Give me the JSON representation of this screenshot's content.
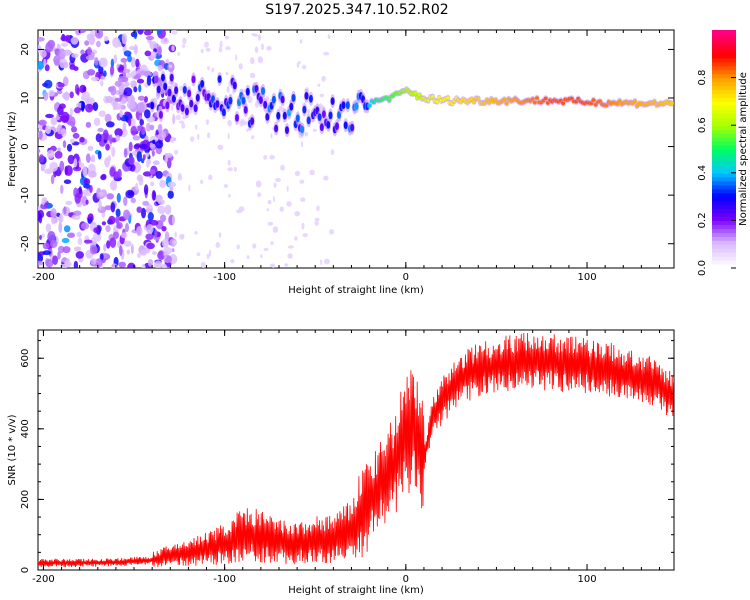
{
  "title": "S197.2025.347.10.52.R02",
  "chart_data": [
    {
      "type": "heatmap",
      "xlabel": "Height of straight line (km)",
      "ylabel": "Frequency (Hz)",
      "xlim": [
        -203,
        148
      ],
      "ylim": [
        -25,
        24
      ],
      "xticks": [
        -200,
        -100,
        0,
        100
      ],
      "yticks": [
        -20,
        -10,
        0,
        10,
        20
      ],
      "colorbar": {
        "label": "Normalized spectral amplitude",
        "range": [
          0,
          1
        ],
        "ticks": [
          "0.0",
          "0.2",
          "0.4",
          "0.6",
          "0.8"
        ],
        "tick_values": [
          0,
          0.2,
          0.4,
          0.6,
          0.8
        ],
        "colors": [
          "#ffffff",
          "#d9b8ff",
          "#7a00ff",
          "#0000ff",
          "#00c8ff",
          "#00ff60",
          "#a8ff00",
          "#ffff00",
          "#ffa000",
          "#ff0000",
          "#ff0080"
        ]
      },
      "trace": {
        "x": [
          -140,
          -120,
          -100,
          -80,
          -60,
          -40,
          -25,
          -15,
          -5,
          0,
          10,
          20,
          40,
          60,
          80,
          100,
          120,
          148
        ],
        "freq": [
          10,
          11,
          10,
          8,
          7,
          6,
          8,
          9.5,
          10.5,
          11.5,
          10,
          9.5,
          9.5,
          9.5,
          9.5,
          9.2,
          9,
          8.8
        ],
        "amplitude": [
          0.2,
          0.22,
          0.25,
          0.3,
          0.3,
          0.25,
          0.3,
          0.5,
          0.55,
          0.6,
          0.65,
          0.7,
          0.75,
          0.8,
          0.85,
          0.85,
          0.8,
          0.75
        ]
      }
    },
    {
      "type": "line",
      "xlabel": "Height of straight line (km)",
      "ylabel": "SNR (10 * v/v)",
      "xlim": [
        -203,
        148
      ],
      "ylim": [
        0,
        680
      ],
      "xticks": [
        -200,
        -100,
        0,
        100
      ],
      "yticks": [
        0,
        200,
        400,
        600
      ],
      "series": [
        {
          "name": "SNR",
          "color": "#ff0000",
          "x": [
            -203,
            -180,
            -160,
            -140,
            -130,
            -120,
            -110,
            -100,
            -90,
            -80,
            -70,
            -60,
            -50,
            -40,
            -30,
            -25,
            -20,
            -15,
            -10,
            -5,
            0,
            5,
            10,
            15,
            20,
            30,
            40,
            50,
            60,
            70,
            80,
            90,
            100,
            110,
            120,
            130,
            140,
            148
          ],
          "y": [
            20,
            20,
            22,
            28,
            40,
            50,
            60,
            75,
            100,
            95,
            80,
            75,
            85,
            90,
            110,
            160,
            200,
            240,
            260,
            320,
            380,
            400,
            320,
            430,
            480,
            540,
            570,
            580,
            590,
            595,
            590,
            585,
            580,
            570,
            555,
            540,
            520,
            490
          ]
        }
      ]
    }
  ]
}
